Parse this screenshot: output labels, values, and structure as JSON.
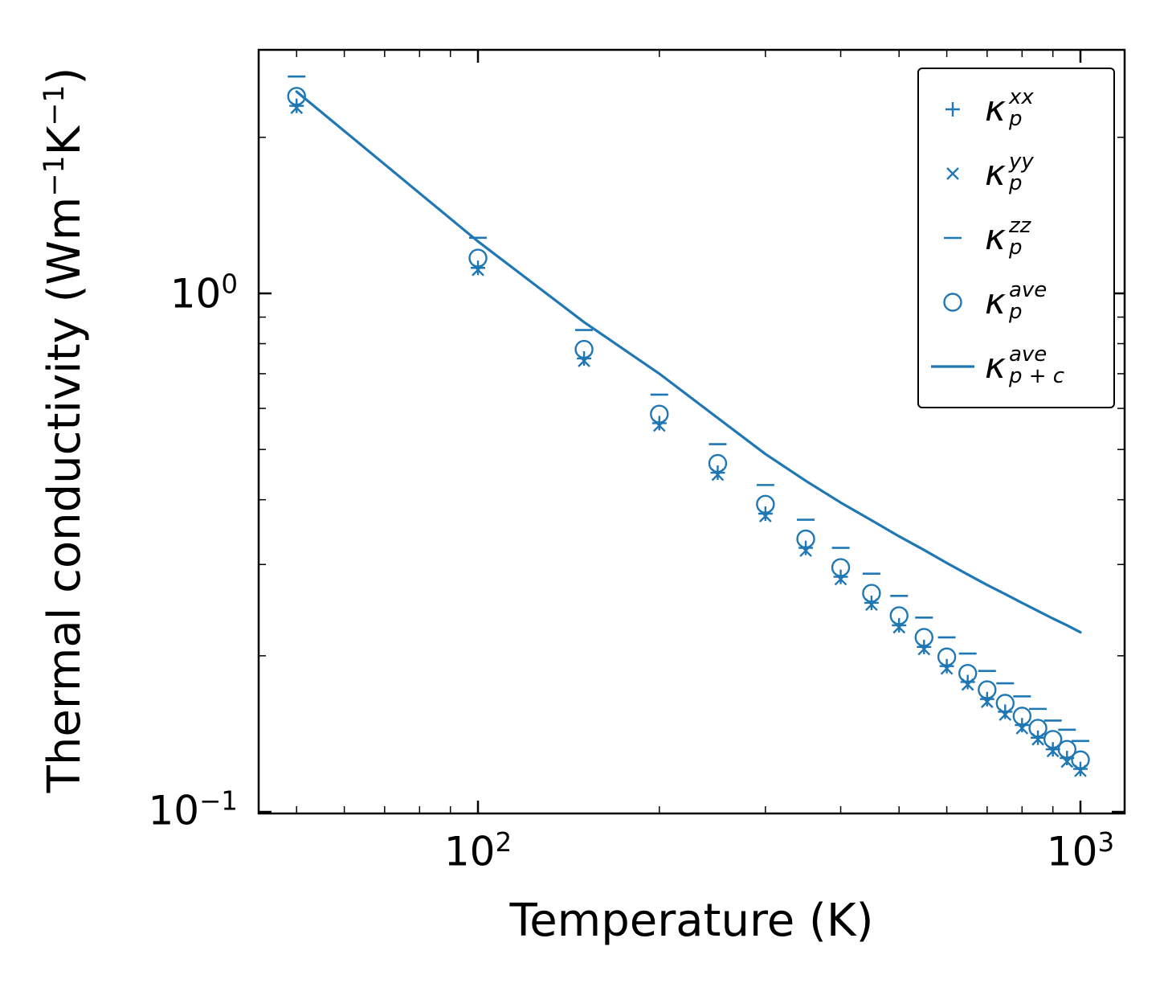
{
  "figure": {
    "accent": "#1f77b4",
    "background": "#ffffff",
    "xlabel": "Temperature (K)",
    "ylabel": "Thermal conductivity (Wm⁻¹K⁻¹)",
    "ylabel_parts": {
      "prefix": "Thermal conductivity (Wm",
      "sup1": "−1",
      "mid": "K",
      "sup2": "−1",
      "suffix": ")"
    }
  },
  "axes": {
    "x_tick_labels": [
      {
        "base": "10",
        "exp": "2"
      },
      {
        "base": "10",
        "exp": "3"
      }
    ],
    "y_tick_labels": [
      {
        "base": "10",
        "exp": "0"
      },
      {
        "base": "10",
        "exp": "−1"
      }
    ]
  },
  "legend": {
    "entries": [
      {
        "symbol": "κ",
        "sup": "xx",
        "sub": "p",
        "marker": "plus"
      },
      {
        "symbol": "κ",
        "sup": "yy",
        "sub": "p",
        "marker": "x"
      },
      {
        "symbol": "κ",
        "sup": "zz",
        "sub": "p",
        "marker": "dash"
      },
      {
        "symbol": "κ",
        "sup": "ave",
        "sub": "p",
        "marker": "circle"
      },
      {
        "symbol": "κ",
        "sup": "ave",
        "sub": "p + c",
        "marker": "line"
      }
    ]
  },
  "chart_data": {
    "type": "scatter",
    "title": "",
    "xlabel": "Temperature (K)",
    "ylabel": "Thermal conductivity (Wm⁻¹K⁻¹)",
    "xscale": "log",
    "yscale": "log",
    "xlim": [
      43,
      1185
    ],
    "ylim": [
      0.099,
      2.95
    ],
    "grid": false,
    "legend_position": "upper right",
    "x": [
      50,
      100,
      150,
      200,
      250,
      300,
      350,
      400,
      450,
      500,
      550,
      600,
      650,
      700,
      750,
      800,
      850,
      900,
      950,
      1000
    ],
    "series": [
      {
        "name": "kappa-p-xx",
        "marker": "plus",
        "values": [
          2.3,
          1.12,
          0.749,
          0.562,
          0.451,
          0.376,
          0.323,
          0.284,
          0.253,
          0.229,
          0.208,
          0.191,
          0.178,
          0.165,
          0.156,
          0.147,
          0.139,
          0.132,
          0.127,
          0.121
        ]
      },
      {
        "name": "kappa-p-yy",
        "marker": "x",
        "values": [
          2.28,
          1.11,
          0.741,
          0.556,
          0.447,
          0.372,
          0.319,
          0.281,
          0.251,
          0.227,
          0.206,
          0.189,
          0.176,
          0.163,
          0.154,
          0.145,
          0.138,
          0.131,
          0.125,
          0.12
        ]
      },
      {
        "name": "kappa-p-zz",
        "marker": "dash",
        "values": [
          2.62,
          1.28,
          0.85,
          0.638,
          0.512,
          0.427,
          0.366,
          0.323,
          0.288,
          0.261,
          0.237,
          0.217,
          0.202,
          0.187,
          0.177,
          0.167,
          0.158,
          0.15,
          0.144,
          0.137
        ]
      },
      {
        "name": "kappa-p-ave",
        "marker": "circle",
        "values": [
          2.4,
          1.17,
          0.78,
          0.585,
          0.47,
          0.392,
          0.336,
          0.296,
          0.264,
          0.239,
          0.217,
          0.199,
          0.185,
          0.172,
          0.162,
          0.153,
          0.145,
          0.138,
          0.132,
          0.126
        ]
      },
      {
        "name": "kappa-p-plus-c-ave",
        "marker": "line",
        "values": [
          2.45,
          1.26,
          0.88,
          0.7,
          0.575,
          0.49,
          0.435,
          0.395,
          0.365,
          0.34,
          0.32,
          0.302,
          0.287,
          0.274,
          0.263,
          0.253,
          0.244,
          0.236,
          0.229,
          0.222
        ]
      }
    ]
  }
}
